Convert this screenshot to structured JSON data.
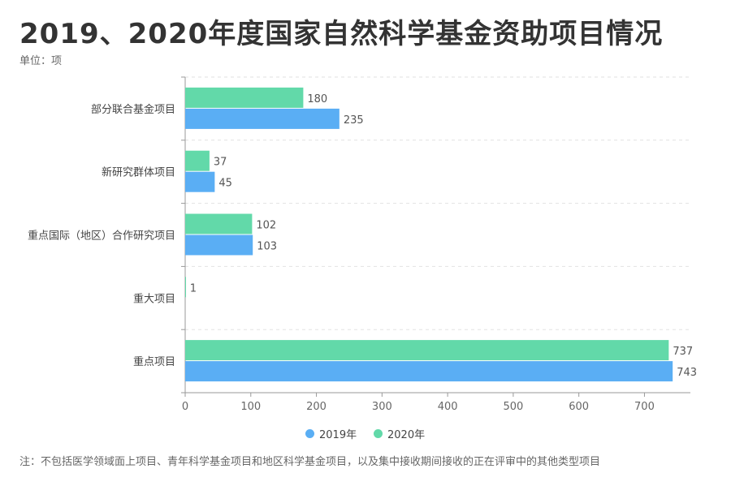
{
  "header": {
    "title": "2019、2020年度国家自然科学基金资助项目情况",
    "unit": "单位：项"
  },
  "footer": {
    "note": "注：不包括医学领域面上项目、青年科学基金项目和地区科学基金项目，以及集中接收期间接收的正在评审中的其他类型项目"
  },
  "colors": {
    "2019": "#5aaef4",
    "2020": "#62d9a9",
    "axis": "#999999",
    "grid": "#e2e2e2"
  },
  "chart_data": {
    "type": "bar",
    "orientation": "horizontal",
    "categories": [
      "部分联合基金项目",
      "新研究群体项目",
      "重点国际（地区）合作研究项目",
      "重大项目",
      "重点项目"
    ],
    "series": [
      {
        "name": "2020年",
        "values": [
          180,
          37,
          102,
          1,
          737
        ]
      },
      {
        "name": "2019年",
        "values": [
          235,
          45,
          103,
          null,
          743
        ]
      }
    ],
    "xticks": [
      "0",
      "100",
      "200",
      "300",
      "400",
      "500",
      "600",
      "700"
    ],
    "xlim": [
      0,
      770
    ],
    "grid": true,
    "legend": "bottom-center",
    "legend_items": [
      "2019年",
      "2020年"
    ]
  }
}
